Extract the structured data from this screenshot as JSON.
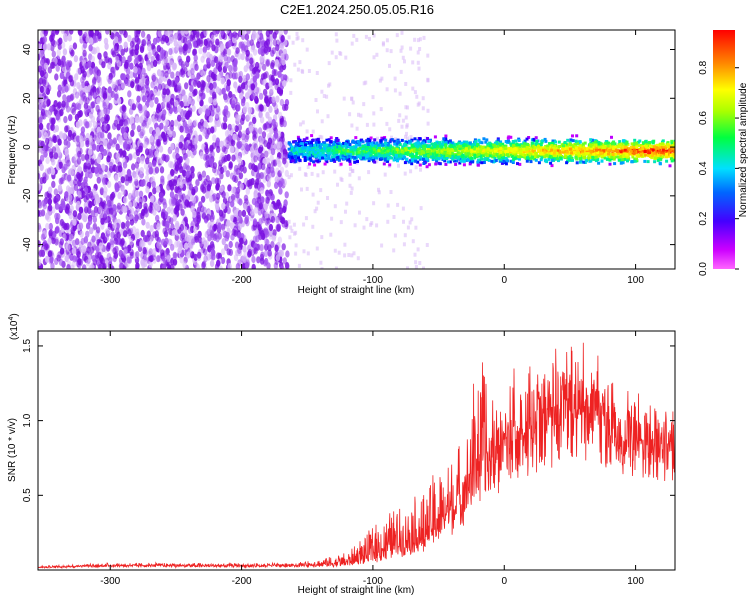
{
  "title": "C2E1.2024.250.05.05.R16",
  "chart_data": [
    {
      "type": "heatmap",
      "xlabel": "Height of straight line (km)",
      "ylabel": "Frequency (Hz)",
      "xlim": [
        -355,
        130
      ],
      "ylim": [
        -50,
        48
      ],
      "x_ticks": [
        -300,
        -200,
        -100,
        0,
        100
      ],
      "y_ticks": [
        -40,
        -20,
        0,
        20,
        40
      ],
      "grid": false,
      "colorbar": {
        "label": "Normalized spectral amplitude",
        "range": [
          0,
          0.95
        ],
        "ticks": [
          0.0,
          0.2,
          0.4,
          0.6,
          0.8
        ],
        "tick_labels": [
          "0.0",
          "0.2",
          "0.4",
          "0.6",
          "0.8"
        ],
        "colormap": [
          "#ff00ff",
          "#8a00ff",
          "#0000ff",
          "#00d0ff",
          "#00ff60",
          "#b0ff00",
          "#ffff00",
          "#ff9000",
          "#ff0000"
        ]
      },
      "regions": [
        {
          "x_range": [
            -355,
            -165
          ],
          "freq_range": [
            -50,
            48
          ],
          "amplitude": [
            0.0,
            0.15
          ],
          "description_level": "diffuse noise"
        },
        {
          "x_range": [
            -165,
            130
          ],
          "freq_range": [
            -8,
            6
          ],
          "amplitude": [
            0.2,
            0.95
          ],
          "band_center_freq": 0
        }
      ]
    },
    {
      "type": "line",
      "xlabel": "Height of straight line (km)",
      "ylabel": "SNR (10 * v/v)",
      "y_multiplier_label": "(x10",
      "y_multiplier_exp": "4",
      "xlim": [
        -355,
        130
      ],
      "ylim": [
        0,
        1.6
      ],
      "x_ticks": [
        -300,
        -200,
        -100,
        0,
        100
      ],
      "y_ticks": [
        0.5,
        1.0,
        1.5
      ],
      "y_tick_labels": [
        "0.5",
        "1.0",
        "1.5"
      ],
      "color": "#ee2222",
      "series": [
        {
          "x": [
            -355,
            -300,
            -200,
            -160,
            -120,
            -100,
            -80,
            -60,
            -50,
            -40,
            -30,
            -20,
            -10,
            0,
            10,
            20,
            30,
            40,
            50,
            60,
            70,
            80,
            90,
            100,
            110,
            120,
            130
          ],
          "y": [
            0.02,
            0.03,
            0.03,
            0.03,
            0.04,
            0.08,
            0.15,
            0.2,
            0.28,
            0.4,
            0.55,
            0.7,
            0.8,
            0.9,
            1.0,
            1.1,
            1.2,
            1.25,
            1.3,
            1.25,
            1.2,
            1.15,
            1.12,
            1.1,
            1.08,
            1.07,
            1.07
          ],
          "envelope_max": [
            0.03,
            0.05,
            0.05,
            0.05,
            0.12,
            0.3,
            0.45,
            0.55,
            0.75,
            0.8,
            1.0,
            1.5,
            1.3,
            1.35,
            1.5,
            1.4,
            1.55,
            1.6,
            1.6,
            1.55,
            1.5,
            1.4,
            1.3,
            1.25,
            1.2,
            1.15,
            1.1
          ]
        }
      ]
    }
  ]
}
